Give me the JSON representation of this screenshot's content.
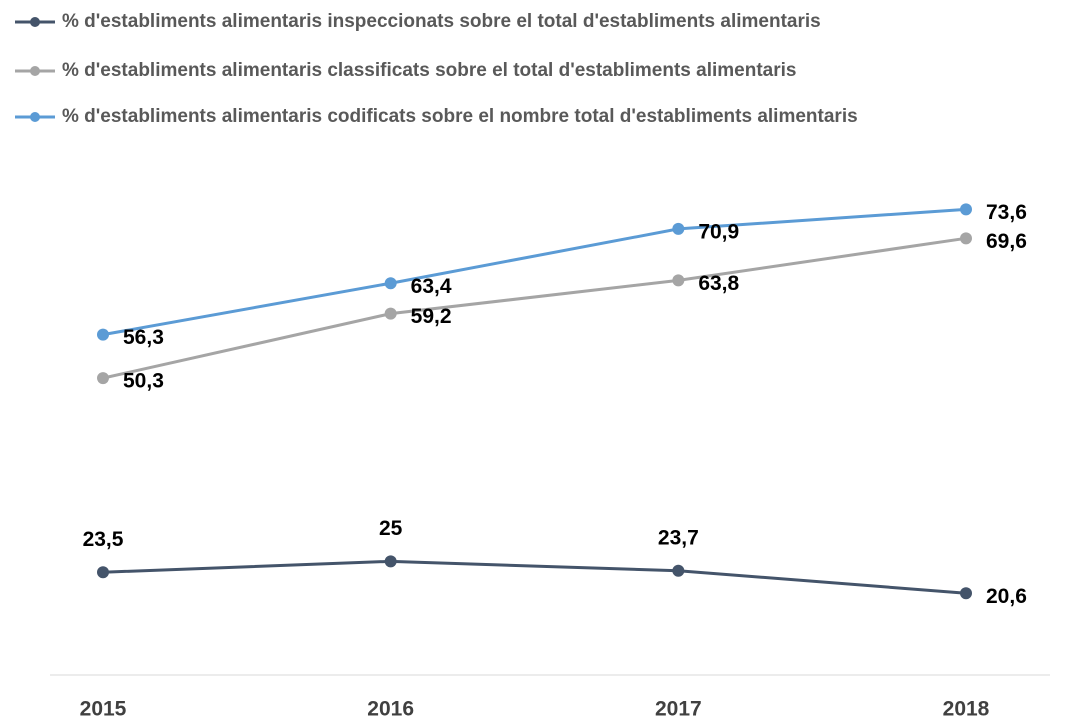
{
  "chart_data": {
    "type": "line",
    "categories": [
      "2015",
      "2016",
      "2017",
      "2018"
    ],
    "series": [
      {
        "name": "% d'establiments alimentaris inspeccionats sobre el total d'establiments alimentaris",
        "color": "#44546a",
        "values": [
          23.5,
          25,
          23.7,
          20.6
        ],
        "value_labels": [
          "23,5",
          "25",
          "23,7",
          "20,6"
        ]
      },
      {
        "name": "% d'establiments alimentaris classificats sobre el total d'establiments alimentaris",
        "color": "#a5a5a5",
        "values": [
          50.3,
          59.2,
          63.8,
          69.6
        ],
        "value_labels": [
          "50,3",
          "59,2",
          "63,8",
          "69,6"
        ]
      },
      {
        "name": "% d'establiments alimentaris codificats sobre el nombre total d'establiments alimentaris",
        "color": "#5b9bd5",
        "values": [
          56.3,
          63.4,
          70.9,
          73.6
        ],
        "value_labels": [
          "56,3",
          "63,4",
          "70,9",
          "73,6"
        ]
      }
    ],
    "ylim": [
      10,
      80
    ],
    "grid": false,
    "legend": "top"
  }
}
